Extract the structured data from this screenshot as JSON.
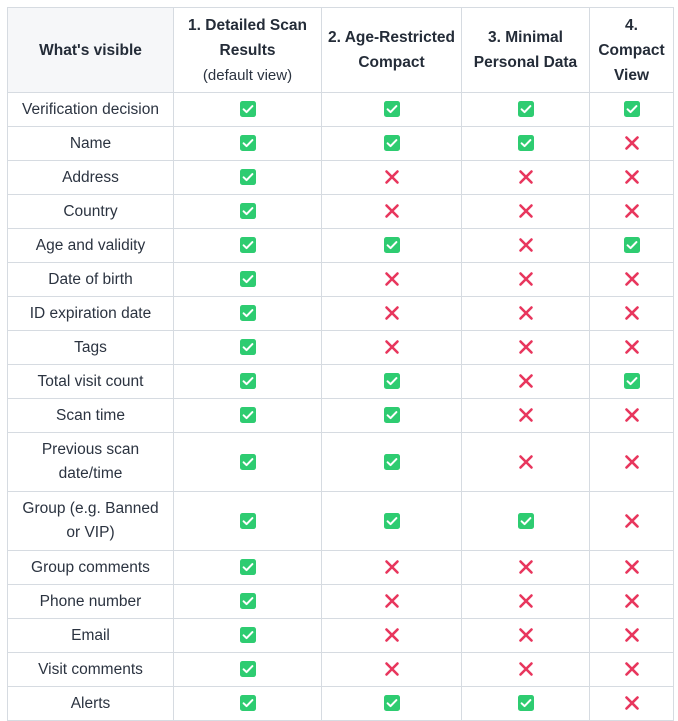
{
  "table": {
    "header_label": "What's visible",
    "columns": [
      {
        "title": "1. Detailed Scan Results",
        "subtitle": "(default view)"
      },
      {
        "title": "2. Age-Restricted Compact",
        "subtitle": ""
      },
      {
        "title": "3. Minimal Personal Data",
        "subtitle": ""
      },
      {
        "title": "4. Compact View",
        "subtitle": ""
      }
    ],
    "rows": [
      {
        "label": "Verification decision",
        "values": [
          true,
          true,
          true,
          true
        ]
      },
      {
        "label": "Name",
        "values": [
          true,
          true,
          true,
          false
        ]
      },
      {
        "label": "Address",
        "values": [
          true,
          false,
          false,
          false
        ]
      },
      {
        "label": "Country",
        "values": [
          true,
          false,
          false,
          false
        ]
      },
      {
        "label": "Age and validity",
        "values": [
          true,
          true,
          false,
          true
        ]
      },
      {
        "label": "Date of birth",
        "values": [
          true,
          false,
          false,
          false
        ]
      },
      {
        "label": "ID expiration date",
        "values": [
          true,
          false,
          false,
          false
        ]
      },
      {
        "label": "Tags",
        "values": [
          true,
          false,
          false,
          false
        ]
      },
      {
        "label": "Total visit count",
        "values": [
          true,
          true,
          false,
          true
        ]
      },
      {
        "label": "Scan time",
        "values": [
          true,
          true,
          false,
          false
        ]
      },
      {
        "label": "Previous scan date/time",
        "values": [
          true,
          true,
          false,
          false
        ]
      },
      {
        "label": "Group (e.g. Banned or VIP)",
        "values": [
          true,
          true,
          true,
          false
        ]
      },
      {
        "label": "Group comments",
        "values": [
          true,
          false,
          false,
          false
        ]
      },
      {
        "label": "Phone number",
        "values": [
          true,
          false,
          false,
          false
        ]
      },
      {
        "label": "Email",
        "values": [
          true,
          false,
          false,
          false
        ]
      },
      {
        "label": "Visit comments",
        "values": [
          true,
          false,
          false,
          false
        ]
      },
      {
        "label": "Alerts",
        "values": [
          true,
          true,
          true,
          false
        ]
      }
    ]
  },
  "icons": {
    "yes": "check-box-icon",
    "no": "cross-icon"
  },
  "colors": {
    "check_bg": "#2ecc71",
    "cross": "#e8365d",
    "border": "#d6dbe1",
    "header_bg": "#f6f7f9"
  }
}
